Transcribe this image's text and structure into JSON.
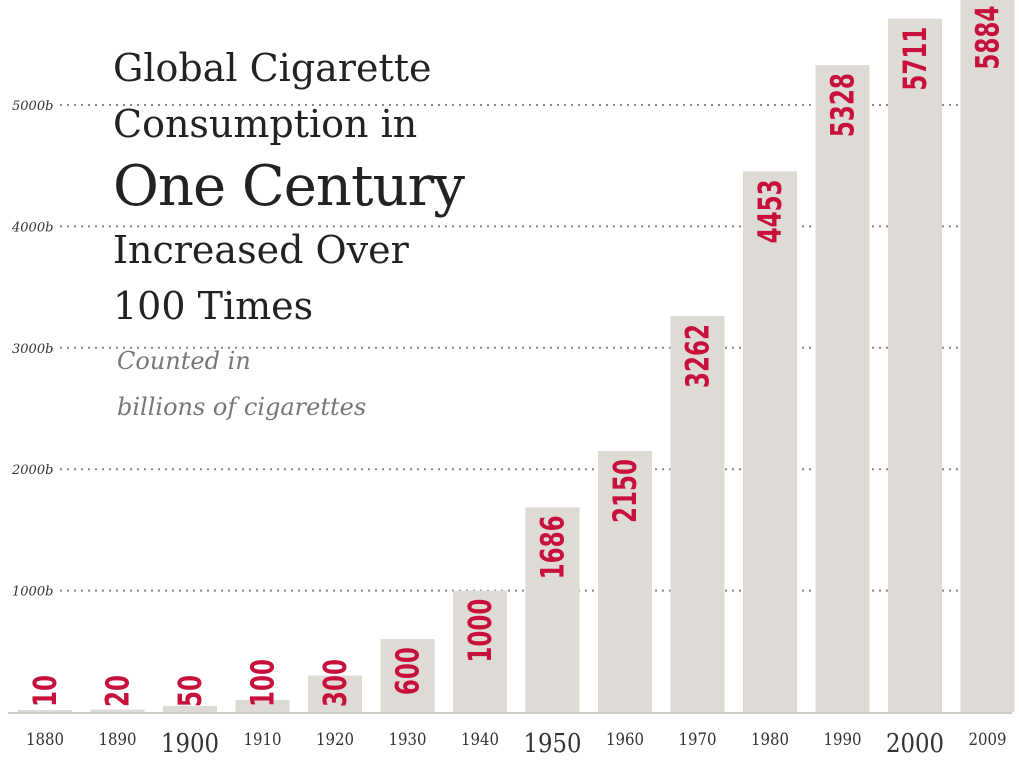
{
  "title": {
    "line1": "Global Cigarette",
    "line2": "Consumption in",
    "line3": "One Century",
    "line4": "Increased Over",
    "line5": "100 Times"
  },
  "subtitle": {
    "line1": "Counted in",
    "line2": "billions of cigarettes"
  },
  "colors": {
    "bar": "#dedad6",
    "value_label": "#c8103c",
    "gridline": "#888888",
    "axis_text": "#333333"
  },
  "chart_data": {
    "type": "bar",
    "title": "Global Cigarette Consumption in One Century Increased Over 100 Times",
    "subtitle": "Counted in billions of cigarettes",
    "categories": [
      "1880",
      "1890",
      "1900",
      "1910",
      "1920",
      "1930",
      "1940",
      "1950",
      "1960",
      "1970",
      "1980",
      "1990",
      "2000",
      "2009"
    ],
    "values": [
      10,
      20,
      50,
      100,
      300,
      600,
      1000,
      1686,
      2150,
      3262,
      4453,
      5328,
      5711,
      5884
    ],
    "emphasized_categories": [
      "1900",
      "1950",
      "2000"
    ],
    "yticks": [
      {
        "value": 1000,
        "label": "1000b"
      },
      {
        "value": 2000,
        "label": "2000b"
      },
      {
        "value": 3000,
        "label": "3000b"
      },
      {
        "value": 4000,
        "label": "4000b"
      },
      {
        "value": 5000,
        "label": "5000b"
      }
    ],
    "ylim": [
      0,
      5900
    ],
    "grid": true,
    "xlabel": "",
    "ylabel": ""
  }
}
